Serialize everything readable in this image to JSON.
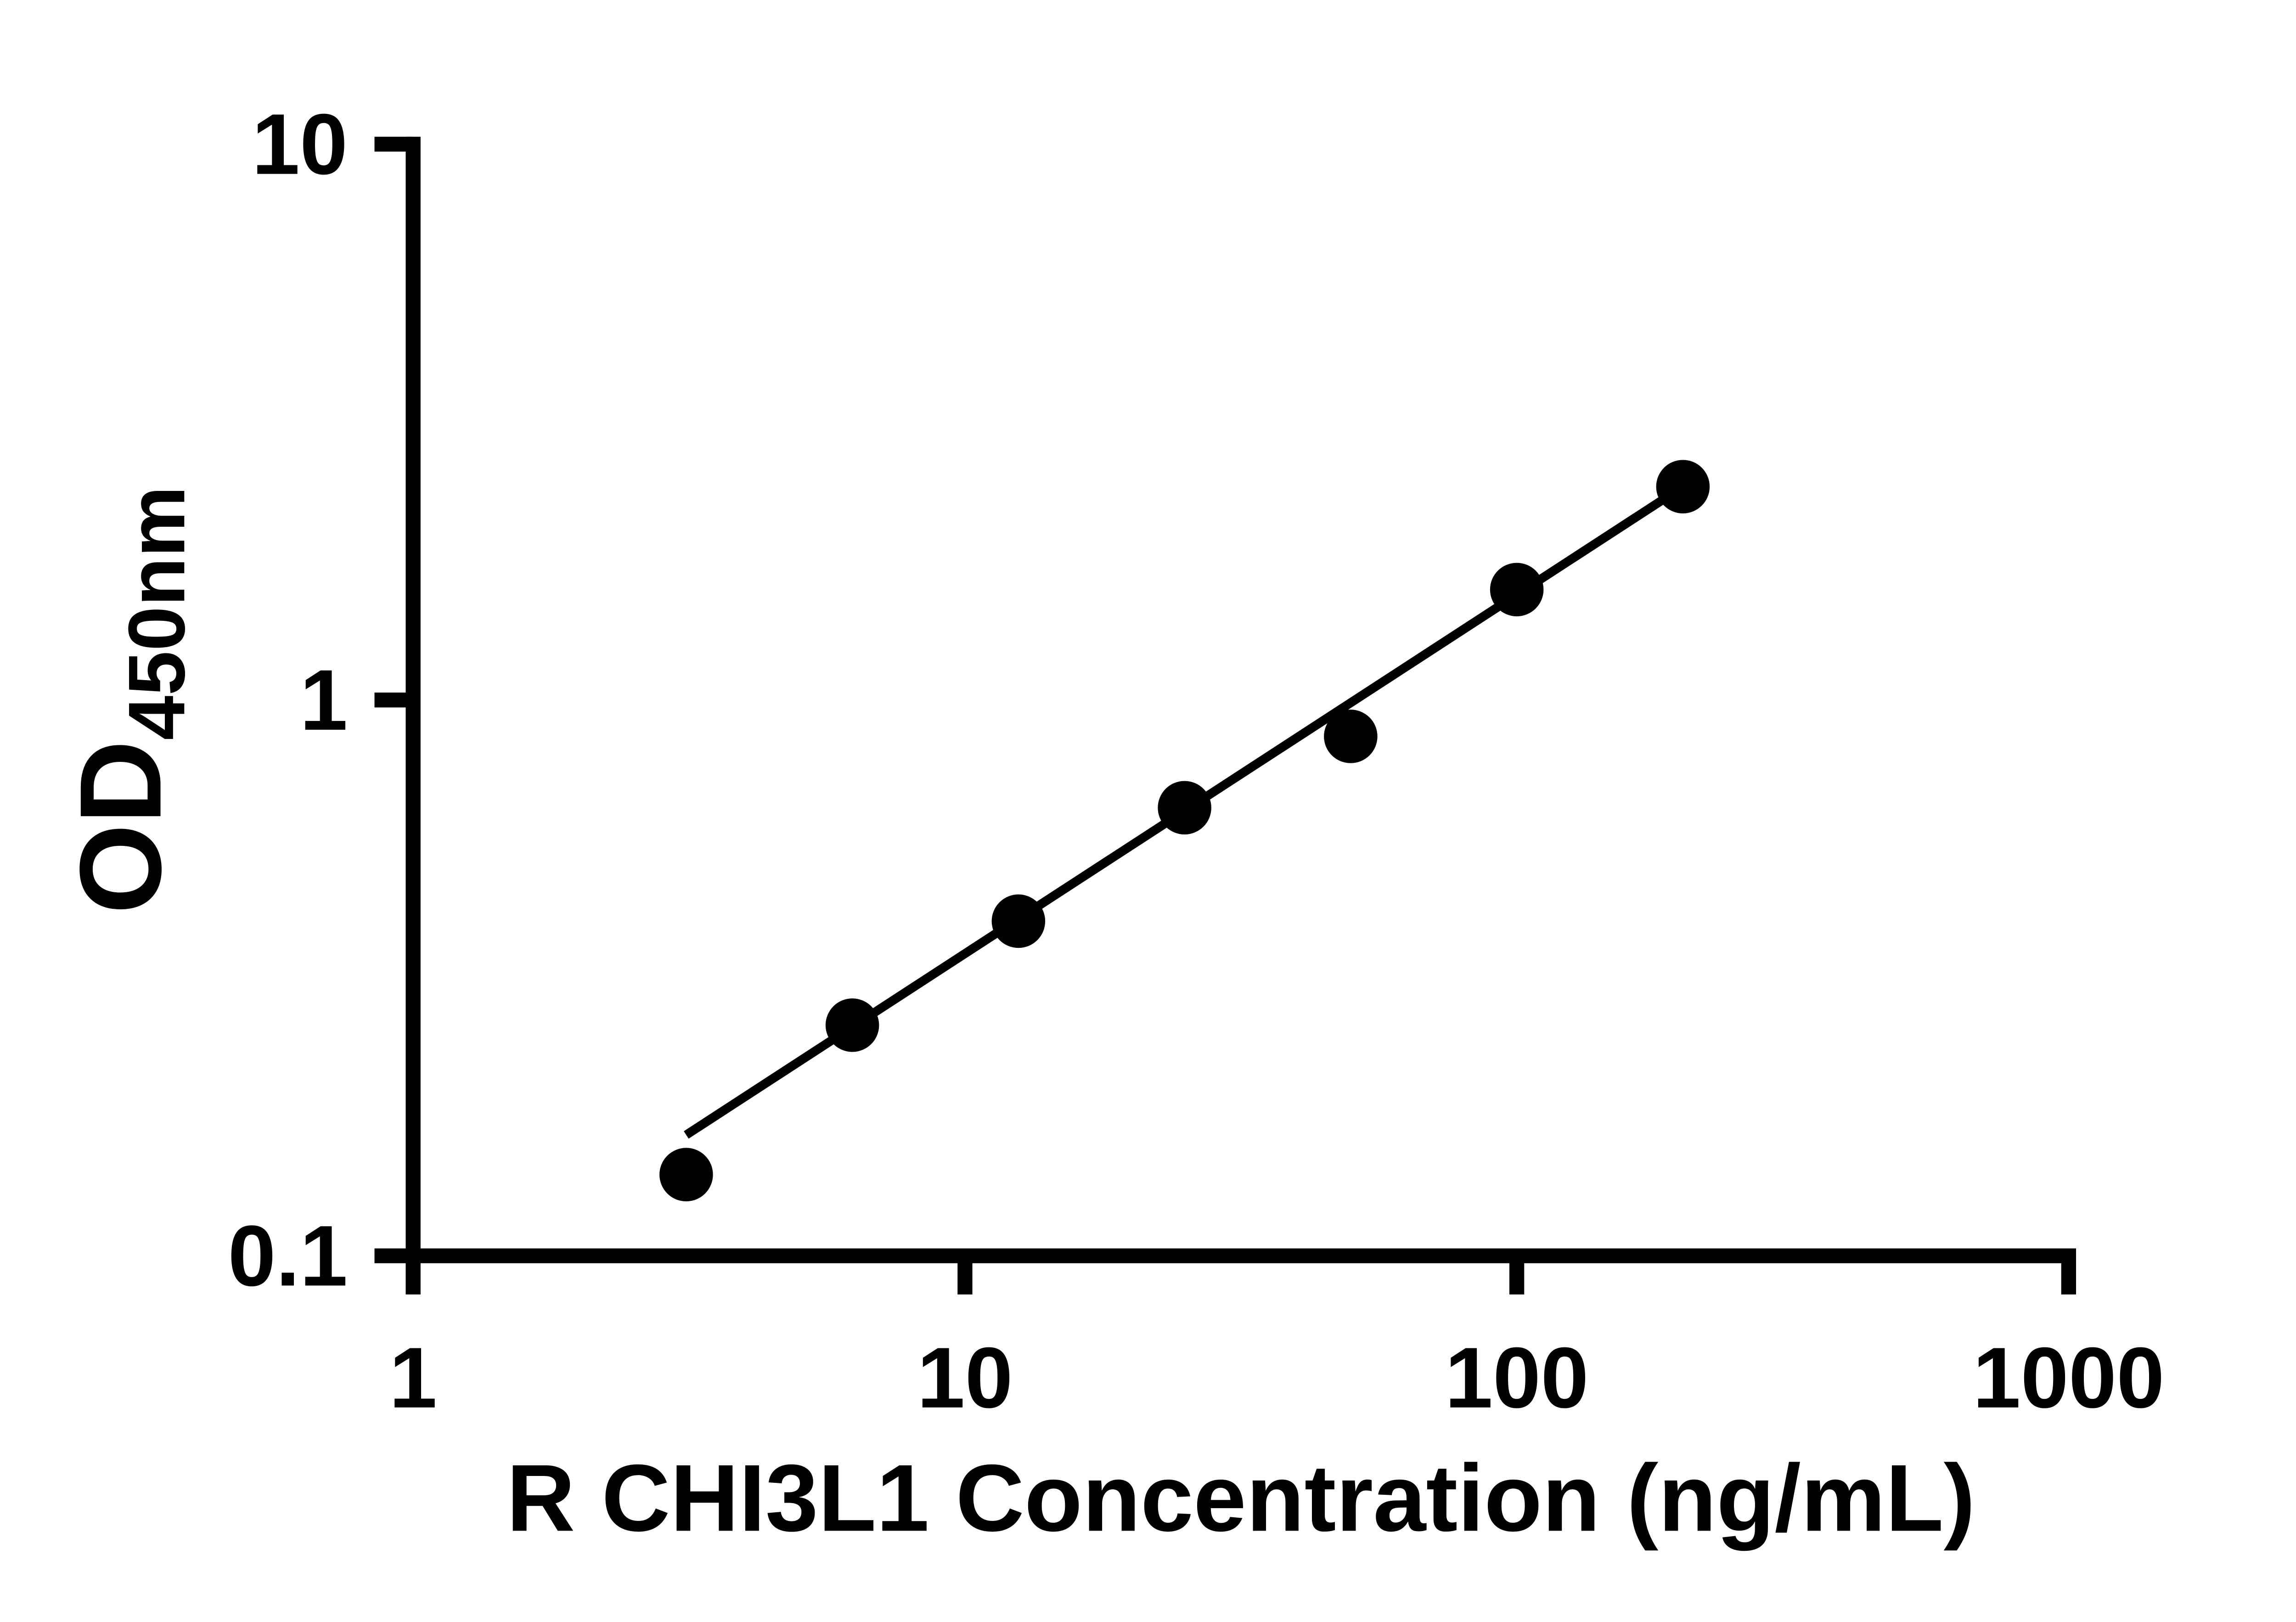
{
  "chart": {
    "ylabel_main": "OD",
    "ylabel_sub": "450nm"
  },
  "chart_data": {
    "type": "scatter",
    "title": "",
    "xlabel": "R CHI3L1 Concentration (ng/mL)",
    "ylabel": "OD450nm",
    "xscale": "log",
    "yscale": "log",
    "xlim": [
      1,
      1000
    ],
    "ylim": [
      0.1,
      10
    ],
    "x_ticks": [
      1,
      10,
      100,
      1000
    ],
    "x_tick_labels": [
      "1",
      "10",
      "100",
      "1000"
    ],
    "y_ticks": [
      0.1,
      1,
      10
    ],
    "y_tick_labels": [
      "0.1",
      "1",
      "10"
    ],
    "grid": false,
    "legend": false,
    "marker_color": "#000000",
    "line_color": "#000000",
    "points": {
      "x": [
        3.125,
        6.25,
        12.5,
        25,
        50,
        100,
        200
      ],
      "y": [
        0.14,
        0.26,
        0.4,
        0.64,
        0.86,
        1.58,
        2.42
      ]
    },
    "trendline": {
      "x1": 3.125,
      "y1": 0.165,
      "x2": 200,
      "y2": 2.42
    }
  }
}
